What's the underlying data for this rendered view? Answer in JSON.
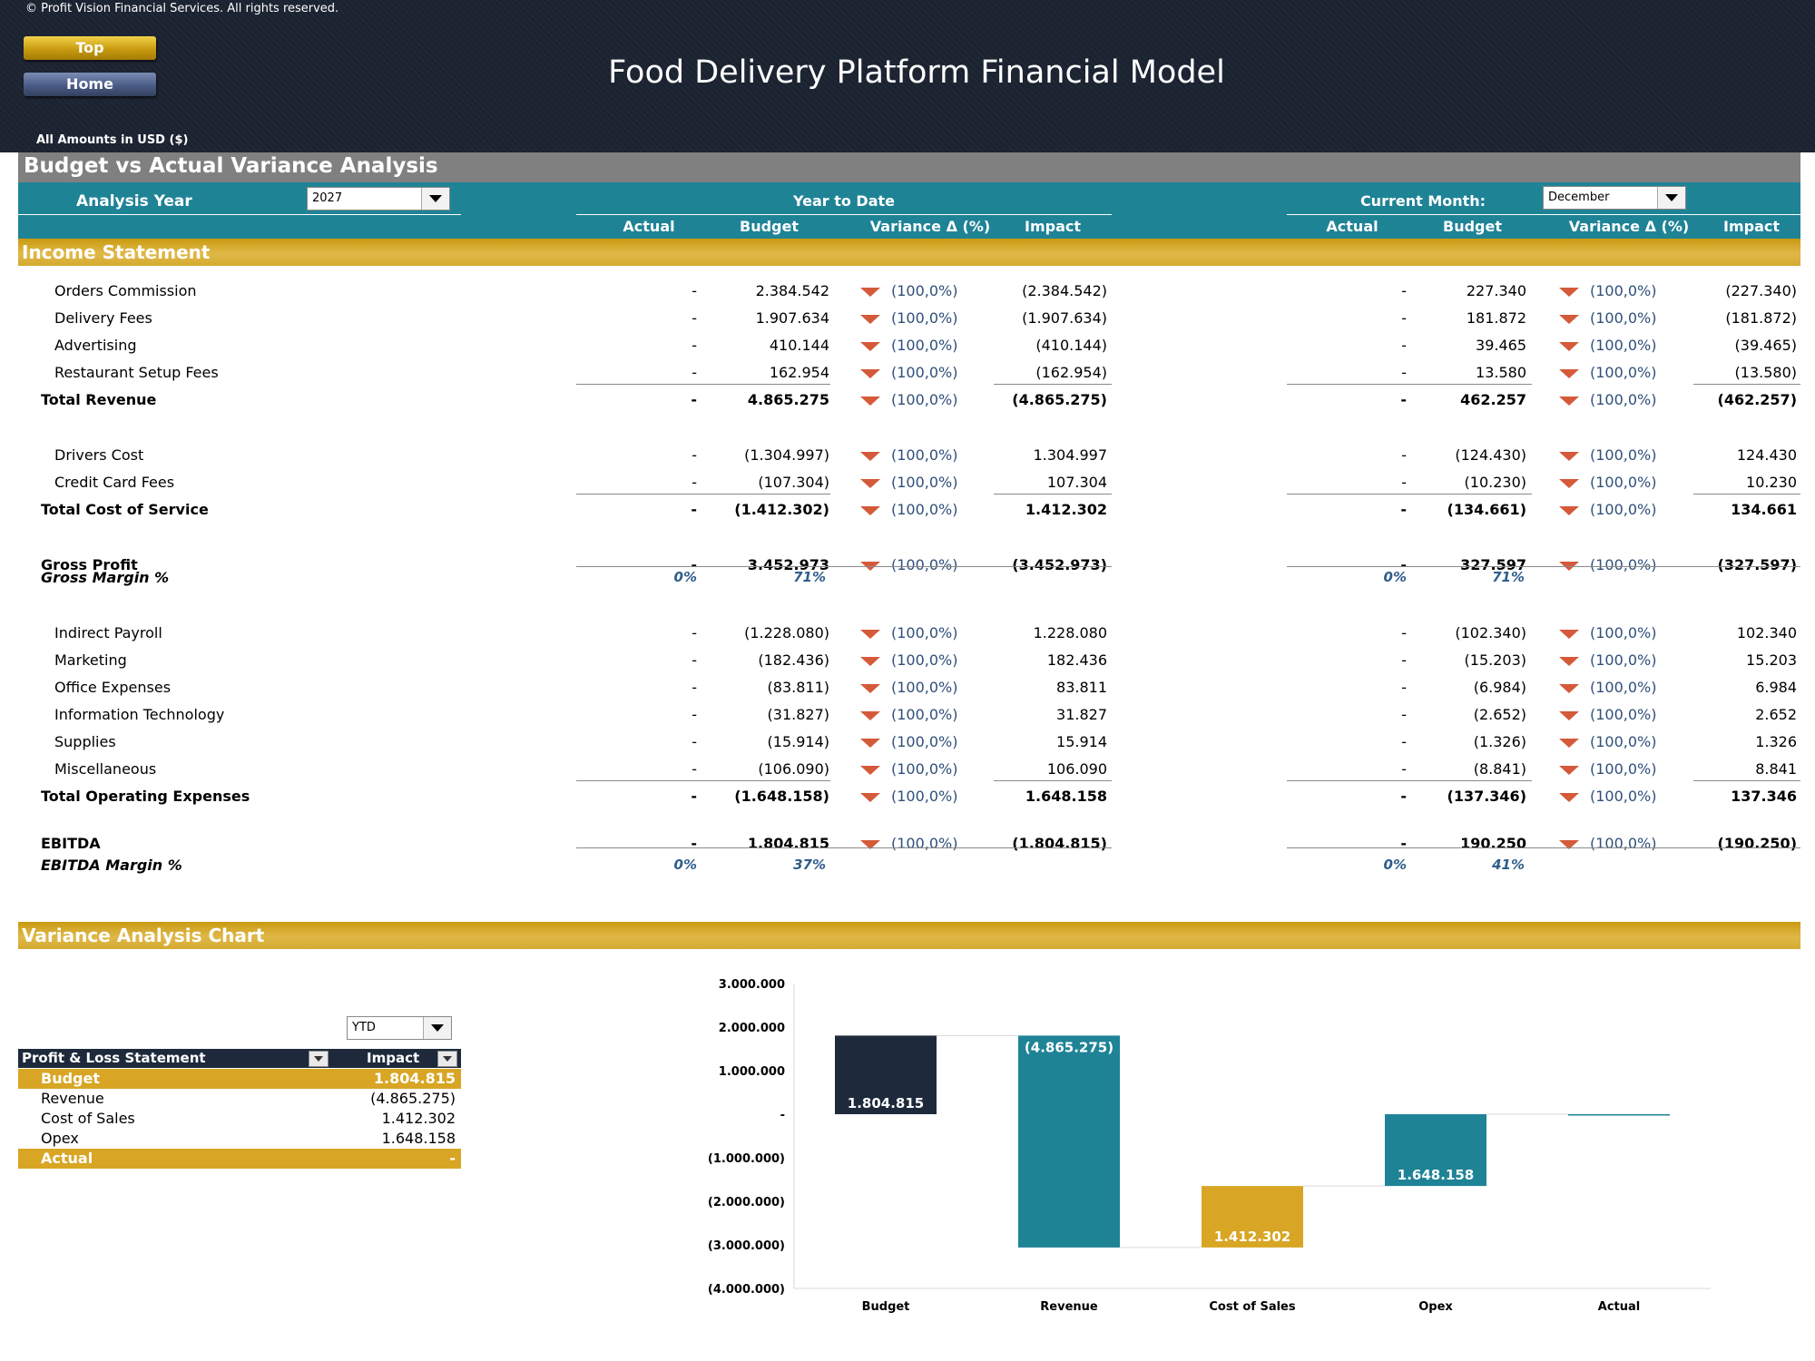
{
  "copyright": "© Profit Vision Financial Services. All rights reserved.",
  "nav": {
    "top": "Top",
    "home": "Home"
  },
  "title": "Food Delivery Platform Financial Model",
  "amounts_label": "All Amounts in  USD ($)",
  "section_title": "Budget vs Actual Variance Analysis",
  "controls": {
    "analysis_year_label": "Analysis Year",
    "analysis_year_value": "2027",
    "ytd_label": "Year to Date",
    "current_month_label": "Current Month:",
    "current_month_value": "December"
  },
  "columns": {
    "actual": "Actual",
    "budget": "Budget",
    "variance": "Variance Δ  (%)",
    "impact": "Impact"
  },
  "income_statement_title": "Income Statement",
  "rows": [
    {
      "label": "Orders Commission",
      "indent": true,
      "bold": false,
      "ytd": [
        "-",
        "2.384.542",
        "(100,0%)",
        "(2.384.542)"
      ],
      "cm": [
        "-",
        "227.340",
        "(100,0%)",
        "(227.340)"
      ]
    },
    {
      "label": "Delivery Fees",
      "indent": true,
      "bold": false,
      "ytd": [
        "-",
        "1.907.634",
        "(100,0%)",
        "(1.907.634)"
      ],
      "cm": [
        "-",
        "181.872",
        "(100,0%)",
        "(181.872)"
      ]
    },
    {
      "label": "Advertising",
      "indent": true,
      "bold": false,
      "ytd": [
        "-",
        "410.144",
        "(100,0%)",
        "(410.144)"
      ],
      "cm": [
        "-",
        "39.465",
        "(100,0%)",
        "(39.465)"
      ]
    },
    {
      "label": "Restaurant Setup Fees",
      "indent": true,
      "bold": false,
      "ytd": [
        "-",
        "162.954",
        "(100,0%)",
        "(162.954)"
      ],
      "cm": [
        "-",
        "13.580",
        "(100,0%)",
        "(13.580)"
      ]
    },
    {
      "label": "Total Revenue",
      "indent": false,
      "bold": true,
      "ytd": [
        "-",
        "4.865.275",
        "(100,0%)",
        "(4.865.275)"
      ],
      "cm": [
        "-",
        "462.257",
        "(100,0%)",
        "(462.257)"
      ]
    },
    {
      "label": "Drivers Cost",
      "indent": true,
      "bold": false,
      "ytd": [
        "-",
        "(1.304.997)",
        "(100,0%)",
        "1.304.997"
      ],
      "cm": [
        "-",
        "(124.430)",
        "(100,0%)",
        "124.430"
      ]
    },
    {
      "label": "Credit Card Fees",
      "indent": true,
      "bold": false,
      "ytd": [
        "-",
        "(107.304)",
        "(100,0%)",
        "107.304"
      ],
      "cm": [
        "-",
        "(10.230)",
        "(100,0%)",
        "10.230"
      ]
    },
    {
      "label": "Total Cost of Service",
      "indent": false,
      "bold": true,
      "ytd": [
        "-",
        "(1.412.302)",
        "(100,0%)",
        "1.412.302"
      ],
      "cm": [
        "-",
        "(134.661)",
        "(100,0%)",
        "134.661"
      ]
    },
    {
      "label": "Gross Profit",
      "indent": false,
      "bold": true,
      "ytd": [
        "-",
        "3.452.973",
        "(100,0%)",
        "(3.452.973)"
      ],
      "cm": [
        "-",
        "327.597",
        "(100,0%)",
        "(327.597)"
      ]
    },
    {
      "label": "Indirect Payroll",
      "indent": true,
      "bold": false,
      "ytd": [
        "-",
        "(1.228.080)",
        "(100,0%)",
        "1.228.080"
      ],
      "cm": [
        "-",
        "(102.340)",
        "(100,0%)",
        "102.340"
      ]
    },
    {
      "label": "Marketing",
      "indent": true,
      "bold": false,
      "ytd": [
        "-",
        "(182.436)",
        "(100,0%)",
        "182.436"
      ],
      "cm": [
        "-",
        "(15.203)",
        "(100,0%)",
        "15.203"
      ]
    },
    {
      "label": "Office Expenses",
      "indent": true,
      "bold": false,
      "ytd": [
        "-",
        "(83.811)",
        "(100,0%)",
        "83.811"
      ],
      "cm": [
        "-",
        "(6.984)",
        "(100,0%)",
        "6.984"
      ]
    },
    {
      "label": "Information Technology",
      "indent": true,
      "bold": false,
      "ytd": [
        "-",
        "(31.827)",
        "(100,0%)",
        "31.827"
      ],
      "cm": [
        "-",
        "(2.652)",
        "(100,0%)",
        "2.652"
      ]
    },
    {
      "label": "Supplies",
      "indent": true,
      "bold": false,
      "ytd": [
        "-",
        "(15.914)",
        "(100,0%)",
        "15.914"
      ],
      "cm": [
        "-",
        "(1.326)",
        "(100,0%)",
        "1.326"
      ]
    },
    {
      "label": "Miscellaneous",
      "indent": true,
      "bold": false,
      "ytd": [
        "-",
        "(106.090)",
        "(100,0%)",
        "106.090"
      ],
      "cm": [
        "-",
        "(8.841)",
        "(100,0%)",
        "8.841"
      ]
    },
    {
      "label": "Total Operating Expenses",
      "indent": false,
      "bold": true,
      "ytd": [
        "-",
        "(1.648.158)",
        "(100,0%)",
        "1.648.158"
      ],
      "cm": [
        "-",
        "(137.346)",
        "(100,0%)",
        "137.346"
      ]
    },
    {
      "label": "EBITDA",
      "indent": false,
      "bold": true,
      "ytd": [
        "-",
        "1.804.815",
        "(100,0%)",
        "(1.804.815)"
      ],
      "cm": [
        "-",
        "190.250",
        "(100,0%)",
        "(190.250)"
      ]
    }
  ],
  "margins": [
    {
      "label": "Gross Margin %",
      "ytd_actual": "0%",
      "ytd_budget": "71%",
      "cm_actual": "0%",
      "cm_budget": "71%"
    },
    {
      "label": "EBITDA Margin %",
      "ytd_actual": "0%",
      "ytd_budget": "37%",
      "cm_actual": "0%",
      "cm_budget": "41%"
    }
  ],
  "chart_section_title": "Variance Analysis Chart",
  "chart_period_value": "YTD",
  "pl_table": {
    "headers": [
      "Profit & Loss Statement",
      "Impact"
    ],
    "rows": [
      {
        "label": "Budget",
        "value": "1.804.815",
        "highlight": true
      },
      {
        "label": "Revenue",
        "value": "(4.865.275)",
        "highlight": false
      },
      {
        "label": "Cost of Sales",
        "value": "1.412.302",
        "highlight": false
      },
      {
        "label": "Opex",
        "value": "1.648.158",
        "highlight": false
      },
      {
        "label": "Actual",
        "value": "-",
        "highlight": true
      }
    ]
  },
  "colors": {
    "navy": "#1e2a3c",
    "teal": "#1f8396",
    "gold": "#d8a624",
    "down": "#d45a3a"
  },
  "chart_data": {
    "type": "bar",
    "subtype": "waterfall",
    "categories": [
      "Budget",
      "Revenue",
      "Cost of Sales",
      "Opex",
      "Actual"
    ],
    "bars": [
      {
        "category": "Budget",
        "start": 0,
        "end": 1804815,
        "label": "1.804.815",
        "color": "#1e2a3c"
      },
      {
        "category": "Revenue",
        "start": 1804815,
        "end": -3060460,
        "label": "(4.865.275)",
        "color": "#1f8396"
      },
      {
        "category": "Cost of Sales",
        "start": -3060460,
        "end": -1648158,
        "label": "1.412.302",
        "color": "#d8a624"
      },
      {
        "category": "Opex",
        "start": -1648158,
        "end": 0,
        "label": "1.648.158",
        "color": "#1f8396"
      },
      {
        "category": "Actual",
        "start": 0,
        "end": 0,
        "label": "",
        "color": "#1f8396"
      }
    ],
    "yticks": [
      3000000,
      2000000,
      1000000,
      0,
      -1000000,
      -2000000,
      -3000000,
      -4000000
    ],
    "ytick_labels": [
      "3.000.000",
      "2.000.000",
      "1.000.000",
      "-",
      "(1.000.000)",
      "(2.000.000)",
      "(3.000.000)",
      "(4.000.000)"
    ],
    "ylim": [
      -4000000,
      3000000
    ],
    "title": "",
    "xlabel": "",
    "ylabel": ""
  }
}
